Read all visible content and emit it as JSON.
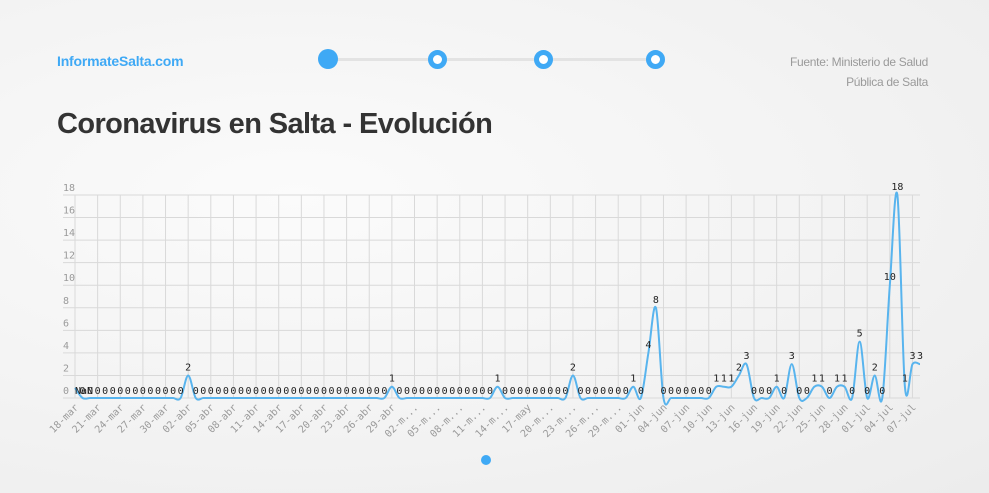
{
  "header": {
    "brand": "InformateSalta.com",
    "source_line1": "Fuente: Ministerio de Salud",
    "source_line2": "Pública de Salta",
    "steps": [
      {
        "label": "step-1",
        "active": true
      },
      {
        "label": "step-2",
        "active": false
      },
      {
        "label": "step-3",
        "active": false
      },
      {
        "label": "step-4",
        "active": false
      }
    ]
  },
  "title": "Coronavirus en Salta - Evolución",
  "colors": {
    "accent": "#3fa9f5",
    "line": "#58b4ee",
    "grid": "#d9d9d9",
    "axis_text": "#9a9a9a"
  },
  "pager": {
    "pages": 1,
    "current": 1
  },
  "chart_data": {
    "type": "line",
    "title": "Coronavirus en Salta - Evolución",
    "xlabel": "",
    "ylabel": "",
    "ylim": [
      0,
      18
    ],
    "yticks": [
      0,
      2,
      4,
      6,
      8,
      10,
      12,
      14,
      16,
      18
    ],
    "grid": true,
    "legend": "none",
    "start_date": "18-mar",
    "end_date": "07-jul",
    "tick_labels": [
      "18-mar",
      "21-mar",
      "24-mar",
      "27-mar",
      "30-mar",
      "02-abr",
      "05-abr",
      "08-abr",
      "11-abr",
      "14-abr",
      "17-abr",
      "20-abr",
      "23-abr",
      "26-abr",
      "29-abr",
      "02-m...",
      "05-m...",
      "08-m...",
      "11-m...",
      "14-m...",
      "17-may",
      "20-m...",
      "23-m...",
      "26-m...",
      "29-m...",
      "01-jun",
      "04-jun",
      "07-jun",
      "10-jun",
      "13-jun",
      "16-jun",
      "19-jun",
      "22-jun",
      "25-jun",
      "28-jun",
      "01-jul",
      "04-jul",
      "07-jul"
    ],
    "first_label": "NaN",
    "values": [
      null,
      0,
      0,
      0,
      0,
      0,
      0,
      0,
      0,
      0,
      0,
      0,
      0,
      0,
      0,
      2,
      0,
      0,
      0,
      0,
      0,
      0,
      0,
      0,
      0,
      0,
      0,
      0,
      0,
      0,
      0,
      0,
      0,
      0,
      0,
      0,
      0,
      0,
      0,
      0,
      0,
      0,
      1,
      0,
      0,
      0,
      0,
      0,
      0,
      0,
      0,
      0,
      0,
      0,
      0,
      0,
      1,
      0,
      0,
      0,
      0,
      0,
      0,
      0,
      0,
      0,
      2,
      0,
      0,
      0,
      0,
      0,
      0,
      0,
      1,
      0,
      4,
      8,
      0,
      0,
      0,
      0,
      0,
      0,
      0,
      1,
      1,
      1,
      2,
      3,
      0,
      0,
      0,
      1,
      0,
      3,
      0,
      0,
      1,
      1,
      0,
      1,
      1,
      0,
      5,
      0,
      2,
      0,
      10,
      18,
      1,
      3,
      3
    ]
  }
}
